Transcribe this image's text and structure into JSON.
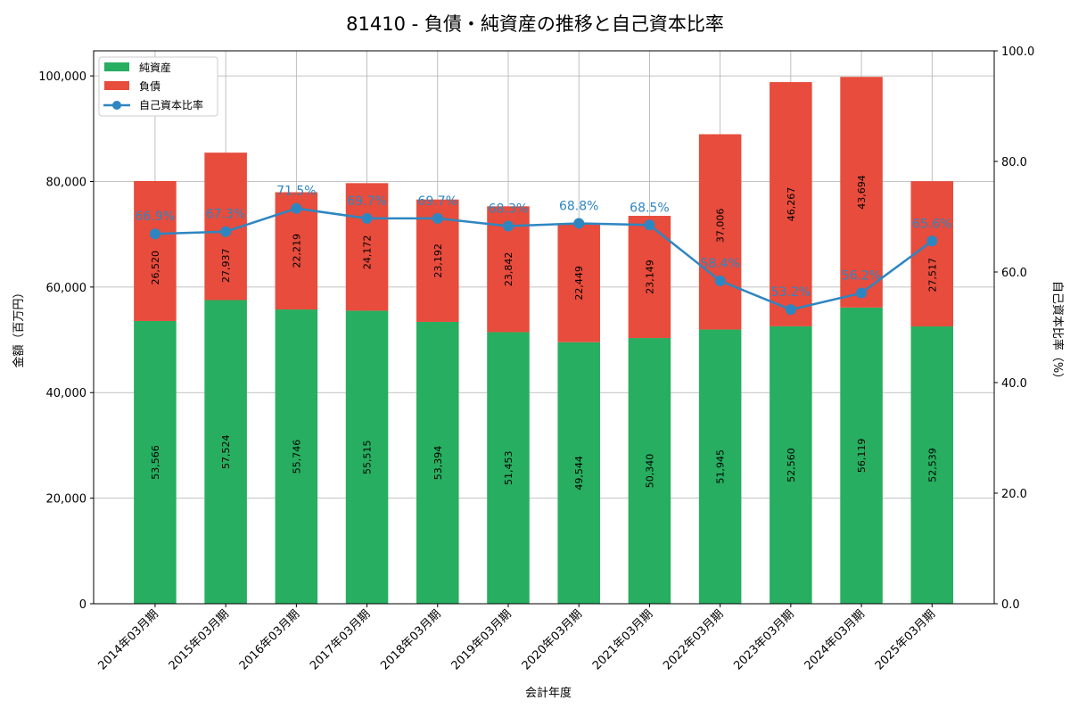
{
  "chart_data": {
    "type": "bar",
    "title": "81410 - 負債・純資産の推移と自己資本比率",
    "xlabel": "会計年度",
    "ylabel": "金額（百万円）",
    "y2label": "自己資本比率（%）",
    "ylim": [
      0,
      104750
    ],
    "y2lim": [
      0,
      100
    ],
    "yticks": [
      "0",
      "20,000",
      "40,000",
      "60,000",
      "80,000",
      "100,000"
    ],
    "y2ticks": [
      "0.0",
      "20.0",
      "40.0",
      "60.0",
      "80.0",
      "100.0"
    ],
    "grid": true,
    "legend_position": "top-left",
    "categories": [
      "2014年03月期",
      "2015年03月期",
      "2016年03月期",
      "2017年03月期",
      "2018年03月期",
      "2019年03月期",
      "2020年03月期",
      "2021年03月期",
      "2022年03月期",
      "2023年03月期",
      "2024年03月期",
      "2025年03月期"
    ],
    "series": [
      {
        "name": "純資産",
        "type": "bar",
        "color": "#27ae60",
        "values": [
          53566,
          57524,
          55746,
          55515,
          53394,
          51453,
          49544,
          50340,
          51945,
          52560,
          56119,
          52539
        ],
        "labels": [
          "53,566",
          "57,524",
          "55,746",
          "55,515",
          "53,394",
          "51,453",
          "49,544",
          "50,340",
          "51,945",
          "52,560",
          "56,119",
          "52,539"
        ]
      },
      {
        "name": "負債",
        "type": "bar",
        "color": "#e74c3c",
        "values": [
          26520,
          27937,
          22219,
          24172,
          23192,
          23842,
          22449,
          23149,
          37006,
          46267,
          43694,
          27517
        ],
        "labels": [
          "26,520",
          "27,937",
          "22,219",
          "24,172",
          "23,192",
          "23,842",
          "22,449",
          "23,149",
          "37,006",
          "46,267",
          "43,694",
          "27,517"
        ]
      },
      {
        "name": "自己資本比率",
        "type": "line",
        "color": "#2e86c1",
        "values": [
          66.9,
          67.3,
          71.5,
          69.7,
          69.7,
          68.3,
          68.8,
          68.5,
          58.4,
          53.2,
          56.2,
          65.6
        ],
        "labels": [
          "66.9%",
          "67.3%",
          "71.5%",
          "69.7%",
          "69.7%",
          "68.3%",
          "68.8%",
          "68.5%",
          "58.4%",
          "53.2%",
          "56.2%",
          "65.6%"
        ]
      }
    ]
  }
}
